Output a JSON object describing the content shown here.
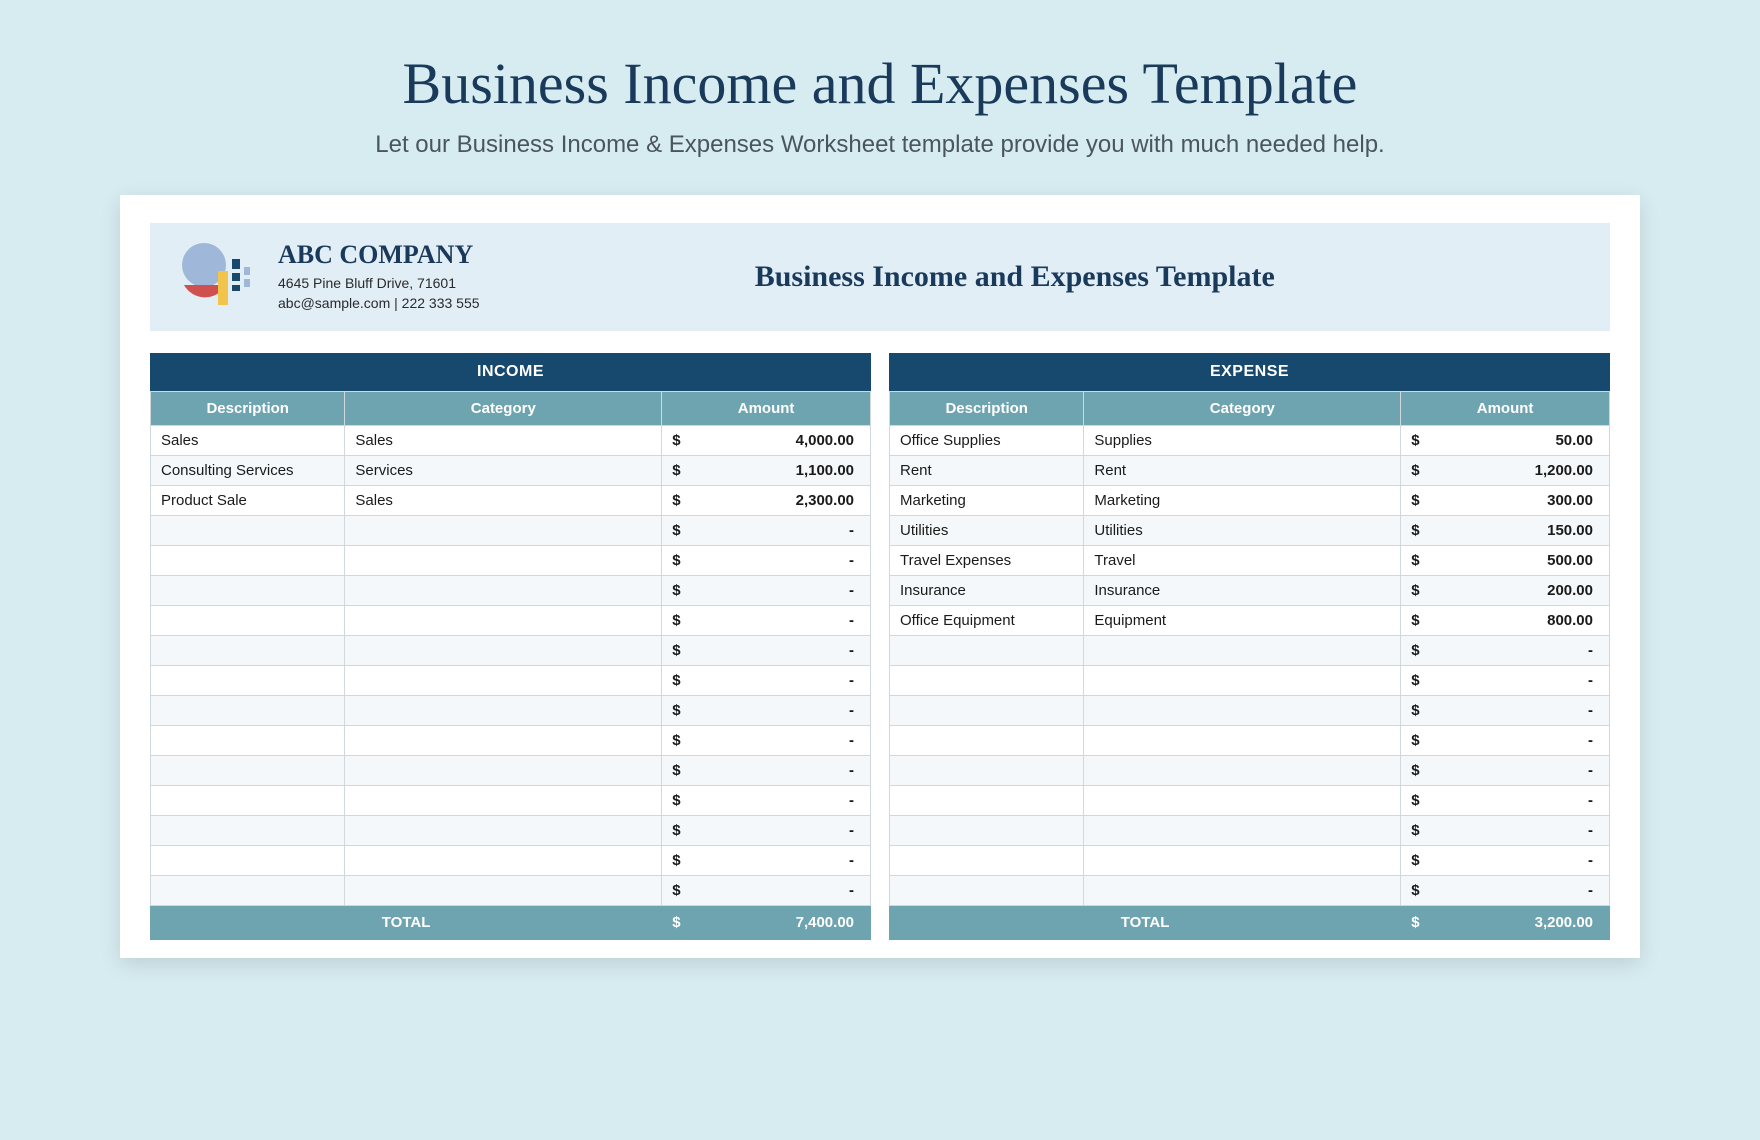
{
  "page": {
    "title": "Business Income and Expenses Template",
    "subtitle": "Let our Business Income & Expenses Worksheet template provide you with much needed help."
  },
  "colors": {
    "page_bg": "#d7ecf1",
    "sheet_bg": "#ffffff",
    "header_bar_bg": "#e2eef6",
    "title_text": "#1a3a5c",
    "section_header_bg": "#17496f",
    "subheader_bg": "#6ea3b0",
    "row_alt_bg": "#f4f8fa",
    "border": "#d0d8dc",
    "logo_blue": "#9fb8da",
    "logo_red": "#d04f4f",
    "logo_yellow": "#f3c44b"
  },
  "company": {
    "name": "ABC COMPANY",
    "address": "4645 Pine Bluff Drive, 71601",
    "contact": "abc@sample.com | 222 333 555"
  },
  "sheet_title": "Business Income and Expenses Template",
  "income": {
    "title": "INCOME",
    "columns": [
      "Description",
      "Category",
      "Amount"
    ],
    "num_rows": 16,
    "rows": [
      {
        "description": "Sales",
        "category": "Sales",
        "amount": "4,000.00"
      },
      {
        "description": "Consulting Services",
        "category": "Services",
        "amount": "1,100.00"
      },
      {
        "description": "Product Sale",
        "category": "Sales",
        "amount": "2,300.00"
      }
    ],
    "total_label": "TOTAL",
    "total": "7,400.00",
    "currency": "$",
    "empty": "-"
  },
  "expense": {
    "title": "EXPENSE",
    "columns": [
      "Description",
      "Category",
      "Amount"
    ],
    "num_rows": 16,
    "rows": [
      {
        "description": "Office Supplies",
        "category": "Supplies",
        "amount": "50.00"
      },
      {
        "description": "Rent",
        "category": "Rent",
        "amount": "1,200.00"
      },
      {
        "description": "Marketing",
        "category": "Marketing",
        "amount": "300.00"
      },
      {
        "description": "Utilities",
        "category": "Utilities",
        "amount": "150.00"
      },
      {
        "description": "Travel Expenses",
        "category": "Travel",
        "amount": "500.00"
      },
      {
        "description": "Insurance",
        "category": "Insurance",
        "amount": "200.00"
      },
      {
        "description": "Office Equipment",
        "category": "Equipment",
        "amount": "800.00"
      }
    ],
    "total_label": "TOTAL",
    "total": "3,200.00",
    "currency": "$",
    "empty": "-"
  }
}
